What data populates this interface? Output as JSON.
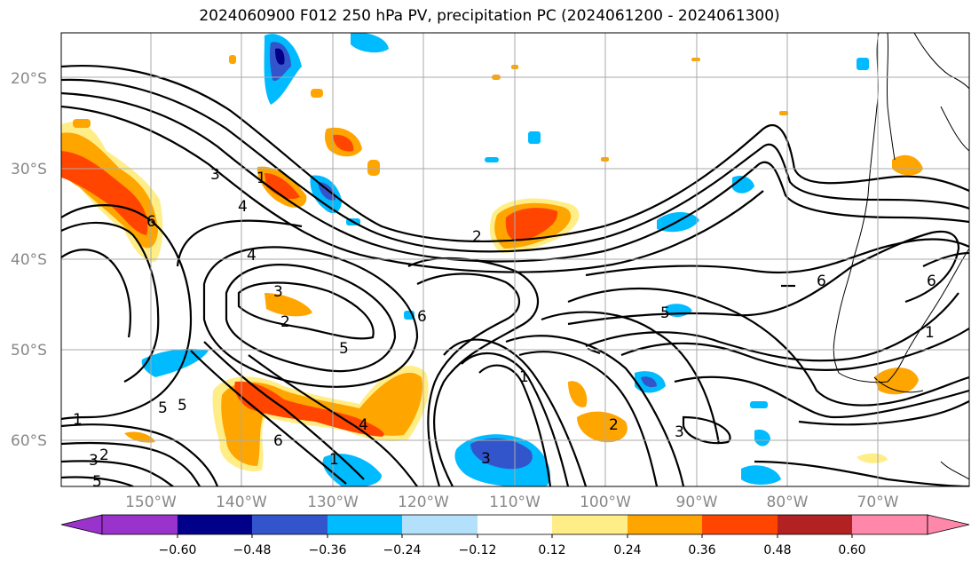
{
  "title": "2024060900 F012 250 hPa PV, precipitation PC (2024061200 - 2024061300)",
  "lat_labels": [
    "20°S",
    "30°S",
    "40°S",
    "50°S",
    "60°S"
  ],
  "lon_labels": [
    "150°W",
    "140°W",
    "130°W",
    "120°W",
    "110°W",
    "100°W",
    "90°W",
    "80°W",
    "70°W"
  ],
  "colorbar": {
    "ticks": [
      "−0.60",
      "−0.48",
      "−0.36",
      "−0.24",
      "−0.12",
      "0.12",
      "0.24",
      "0.36",
      "0.48",
      "0.60"
    ],
    "colors": [
      "#9933cc",
      "#000088",
      "#3355cc",
      "#00bbff",
      "#b3e0fb",
      "#ffffff",
      "#ffee88",
      "#ffa500",
      "#ff4500",
      "#b22222",
      "#ff88aa"
    ]
  },
  "contour_labels": [
    "3",
    "1",
    "4",
    "6",
    "4",
    "3",
    "2",
    "2",
    "6",
    "5",
    "5",
    "1",
    "5",
    "4",
    "1",
    "2",
    "3",
    "5",
    "6",
    "3",
    "1",
    "2",
    "3",
    "6",
    "5",
    "1",
    "6"
  ],
  "colors": {
    "gray_label": "#888888",
    "land_outline": "#000000",
    "grid": "#aaaaaa"
  }
}
